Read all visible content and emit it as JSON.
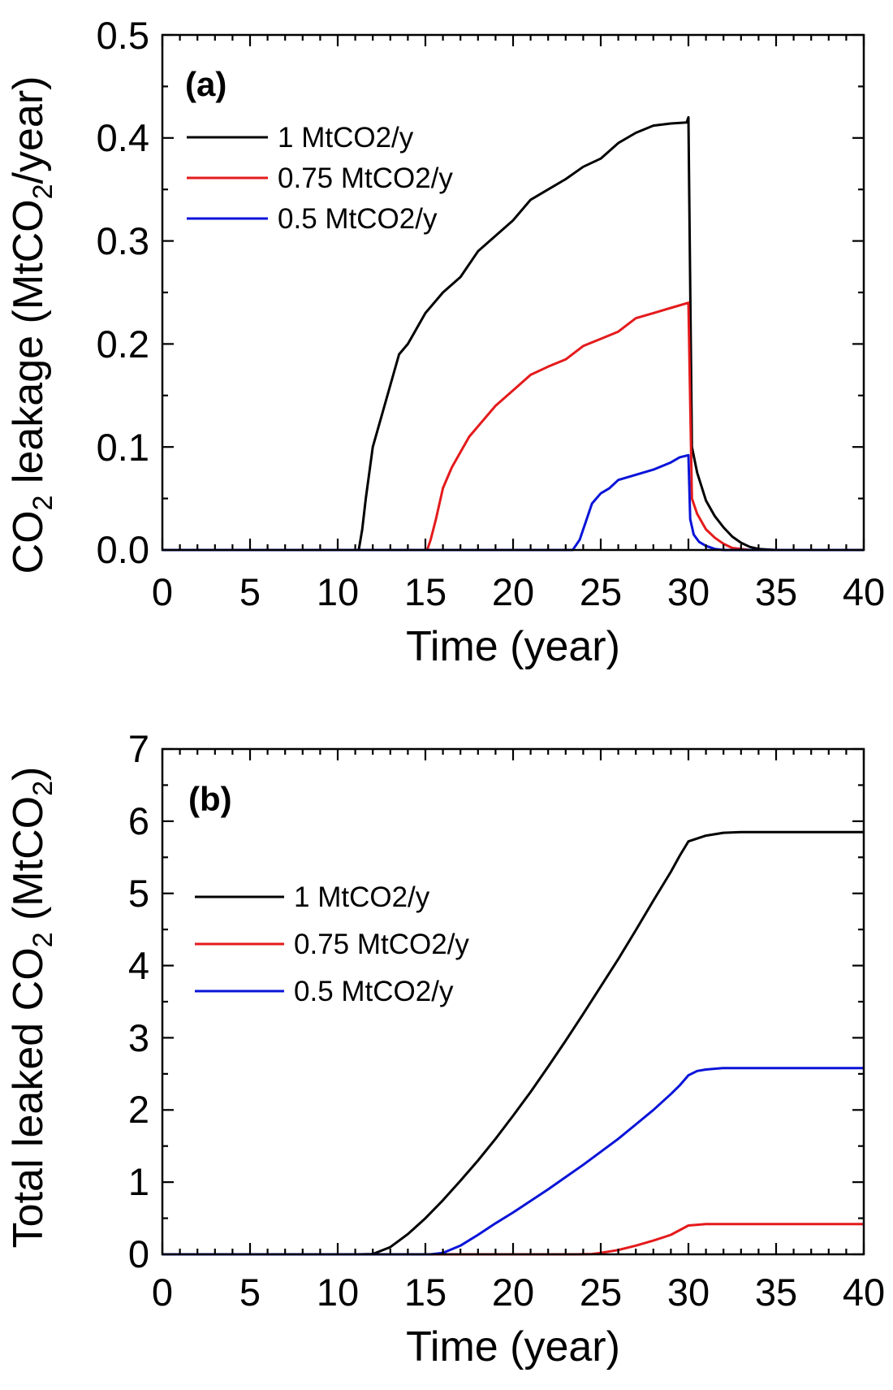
{
  "colors": {
    "black": "#000000",
    "red": "#e41a1c",
    "blue": "#0a14d8"
  },
  "chart_data": [
    {
      "type": "line",
      "panel_label": "(a)",
      "title": "",
      "xlabel": "Time (year)",
      "ylabel": "CO2 leakage (MtCO2/year)",
      "ylabel_parts": {
        "pre": "CO",
        "sub1": "2",
        "mid": " leakage (MtCO",
        "sub2": "2",
        "post": "/year)"
      },
      "xlim": [
        0,
        40
      ],
      "ylim": [
        0,
        0.5
      ],
      "xticks": [
        0,
        5,
        10,
        15,
        20,
        25,
        30,
        35,
        40
      ],
      "xtick_labels": [
        "0",
        "5",
        "10",
        "15",
        "20",
        "25",
        "30",
        "35",
        "40"
      ],
      "yticks": [
        0,
        0.1,
        0.2,
        0.3,
        0.4,
        0.5
      ],
      "ytick_labels": [
        "0.0",
        "0.1",
        "0.2",
        "0.3",
        "0.4",
        "0.5"
      ],
      "legend_position": "top-left",
      "series": [
        {
          "name": "1 MtCO2/y",
          "color": "#000000",
          "x": [
            0,
            11.2,
            11.4,
            11.6,
            12,
            12.5,
            13,
            13.5,
            14,
            15,
            16,
            17,
            18,
            19,
            20,
            21,
            22,
            23,
            24,
            25,
            26,
            27,
            28,
            29,
            29.9,
            30,
            30.2,
            30.5,
            31,
            31.5,
            32,
            32.5,
            33,
            33.5,
            34,
            35,
            40
          ],
          "y": [
            0,
            0,
            0.02,
            0.05,
            0.1,
            0.13,
            0.16,
            0.19,
            0.2,
            0.23,
            0.25,
            0.265,
            0.29,
            0.305,
            0.32,
            0.34,
            0.35,
            0.36,
            0.372,
            0.38,
            0.395,
            0.405,
            0.412,
            0.414,
            0.415,
            0.42,
            0.1,
            0.075,
            0.048,
            0.033,
            0.022,
            0.013,
            0.007,
            0.003,
            0.001,
            0,
            0
          ]
        },
        {
          "name": "0.75 MtCO2/y",
          "color": "#e41a1c",
          "x": [
            0,
            15.1,
            15.3,
            15.6,
            16,
            16.5,
            17,
            17.5,
            18,
            19,
            20,
            21,
            22,
            23,
            24,
            25,
            26,
            27,
            28,
            29,
            30,
            30.2,
            30.5,
            31,
            31.5,
            32,
            32.5,
            33,
            33.5,
            34,
            40
          ],
          "y": [
            0,
            0,
            0.01,
            0.03,
            0.06,
            0.08,
            0.095,
            0.11,
            0.12,
            0.14,
            0.155,
            0.17,
            0.178,
            0.185,
            0.198,
            0.205,
            0.212,
            0.225,
            0.23,
            0.235,
            0.24,
            0.05,
            0.035,
            0.02,
            0.012,
            0.006,
            0.002,
            0.001,
            0,
            0,
            0
          ]
        },
        {
          "name": "0.5 MtCO2/y",
          "color": "#0a14d8",
          "x": [
            0,
            23.4,
            23.6,
            23.8,
            24,
            24.5,
            25,
            25.5,
            26,
            27,
            28,
            29,
            29.5,
            30,
            30.1,
            30.3,
            30.6,
            31,
            31.5,
            32,
            40
          ],
          "y": [
            0,
            0,
            0.005,
            0.01,
            0.02,
            0.045,
            0.055,
            0.06,
            0.068,
            0.073,
            0.078,
            0.085,
            0.09,
            0.092,
            0.03,
            0.015,
            0.008,
            0.004,
            0.001,
            0,
            0
          ]
        }
      ]
    },
    {
      "type": "line",
      "panel_label": "(b)",
      "title": "",
      "xlabel": "Time (year)",
      "ylabel": "Total leaked CO2 (MtCO2)",
      "ylabel_parts": {
        "pre": "Total leaked CO",
        "sub1": "2",
        "mid": " (MtCO",
        "sub2": "2",
        "post": ")"
      },
      "xlim": [
        0,
        40
      ],
      "ylim": [
        0,
        7
      ],
      "xticks": [
        0,
        5,
        10,
        15,
        20,
        25,
        30,
        35,
        40
      ],
      "xtick_labels": [
        "0",
        "5",
        "10",
        "15",
        "20",
        "25",
        "30",
        "35",
        "40"
      ],
      "yticks": [
        0,
        1,
        2,
        3,
        4,
        5,
        6,
        7
      ],
      "ytick_labels": [
        "0",
        "1",
        "2",
        "3",
        "4",
        "5",
        "6",
        "7"
      ],
      "legend_position": "upper-left",
      "series": [
        {
          "name": "1 MtCO2/y",
          "color": "#000000",
          "x": [
            0,
            11.2,
            12,
            13,
            14,
            15,
            16,
            17,
            18,
            19,
            20,
            21,
            22,
            23,
            24,
            25,
            26,
            27,
            28,
            29,
            29.5,
            30,
            31,
            32,
            33,
            34,
            35,
            40
          ],
          "y": [
            0,
            0,
            0.005,
            0.1,
            0.28,
            0.5,
            0.75,
            1.02,
            1.3,
            1.6,
            1.92,
            2.25,
            2.6,
            2.96,
            3.33,
            3.71,
            4.09,
            4.49,
            4.9,
            5.3,
            5.52,
            5.72,
            5.8,
            5.84,
            5.85,
            5.85,
            5.85,
            5.85
          ]
        },
        {
          "name": "0.75 MtCO2/y",
          "color": "#e41a1c",
          "x": [
            0,
            23.6,
            24.5,
            25,
            26,
            27,
            28,
            29,
            30,
            31,
            35,
            40
          ],
          "y": [
            0,
            0,
            0.005,
            0.02,
            0.06,
            0.12,
            0.19,
            0.27,
            0.4,
            0.42,
            0.42,
            0.42
          ]
        },
        {
          "name": "0.5 MtCO2/y",
          "color": "#0a14d8",
          "x": [
            0,
            15.3,
            16,
            17,
            18,
            19,
            20,
            21,
            22,
            23,
            24,
            25,
            26,
            27,
            28,
            29,
            29.5,
            30,
            30.5,
            31,
            32,
            33,
            35,
            40
          ],
          "y": [
            0,
            0,
            0.02,
            0.12,
            0.27,
            0.43,
            0.58,
            0.74,
            0.9,
            1.07,
            1.24,
            1.42,
            1.6,
            1.8,
            2.0,
            2.22,
            2.34,
            2.48,
            2.54,
            2.56,
            2.58,
            2.58,
            2.58,
            2.58
          ]
        }
      ]
    }
  ]
}
